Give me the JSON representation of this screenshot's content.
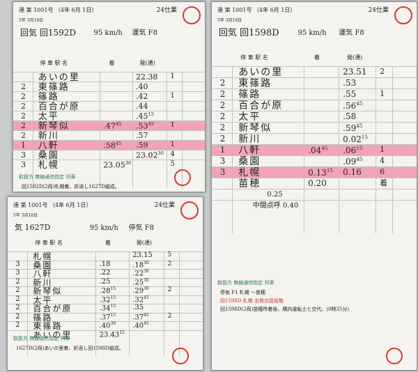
{
  "cards": [
    {
      "header": "達 第 1001号 （4年 6月 1日）",
      "duty": "24仕業",
      "date": "5年 3月18日",
      "train": "回気 回1592D",
      "speed": "95 km/h",
      "kind": "運気 F8",
      "cols": [
        "停 車 駅 名",
        "着",
        "発(通)"
      ],
      "rows": [
        {
          "station": "あいの里",
          "dep": "22.38",
          "track": "1"
        },
        {
          "interval": "2",
          "station": "東篠路",
          "dep": ".40"
        },
        {
          "interval": "2",
          "station": "篠路",
          "dep": ".42",
          "track": "1"
        },
        {
          "interval": "2",
          "station": "百合が原",
          "dep": ".44"
        },
        {
          "interval": "2",
          "station": "太平",
          "dep": ".45",
          "dep_sec": "15"
        },
        {
          "interval": "2",
          "station": "新琴似",
          "arr": ".47",
          "arr_sec": "45",
          "dep": ".53",
          "dep_sec": "45",
          "track": "1",
          "highlight": true
        },
        {
          "interval": "2",
          "station": "新川",
          "dep": ".57"
        },
        {
          "interval": "1",
          "station": "八軒",
          "arr": ".58",
          "arr_sec": "45",
          "dep": ".59",
          "track": "1",
          "highlight": true
        },
        {
          "interval": "3",
          "station": "桑園",
          "dep": "23.02",
          "dep_sec": "30",
          "track": "4"
        },
        {
          "interval": "3",
          "station": "札幌",
          "arr": "23.05",
          "arr_sec": "30",
          "track": "5"
        }
      ],
      "handling": "取扱方 無線通信指定 列車",
      "notes": [
        "回1592D(2両)札幌着、折返し1627D組成。"
      ]
    },
    {
      "header": "達 第 1001号 （4年 6月 1日）",
      "duty": "24仕業",
      "date": "5年 3月18日",
      "train": "回気 回1598D",
      "speed": "95 km/h",
      "kind": "運気 F8",
      "cols": [
        "停 車 駅 名",
        "着",
        "発(通)"
      ],
      "rows": [
        {
          "station": "あいの里",
          "dep": "23.51",
          "track": "2"
        },
        {
          "interval": "2",
          "station": "東篠路",
          "dep": ".53"
        },
        {
          "interval": "2",
          "station": "篠路",
          "dep": ".55",
          "track": "1"
        },
        {
          "interval": "2",
          "station": "百合が原",
          "dep": ".56",
          "dep_sec": "45"
        },
        {
          "interval": "2",
          "station": "太平",
          "dep": ".58"
        },
        {
          "interval": "2",
          "station": "新琴似",
          "dep": ".59",
          "dep_sec": "45"
        },
        {
          "interval": "2",
          "station": "新川",
          "dep": "0.02",
          "dep_sec": "15"
        },
        {
          "interval": "1",
          "station": "八軒",
          "arr": ".04",
          "arr_sec": "45",
          "dep": ".06",
          "dep_sec": "15",
          "track": "1",
          "highlight": true
        },
        {
          "interval": "3",
          "station": "桑園",
          "dep": ".09",
          "dep_sec": "45",
          "track": "4"
        },
        {
          "interval": "3",
          "station": "札幌",
          "arr": "0.13",
          "arr_sec": "15",
          "dep": "0.16",
          "track": "6",
          "highlight": true
        },
        {
          "station": "苗穂",
          "arr": "0.20",
          "track": "着"
        }
      ],
      "extra": [
        "0.25",
        "中間点呼 0.40"
      ],
      "handling": "取扱方 無線通信指定 列車",
      "notes": [
        "停気 F1 札幌 ～苗穂",
        "回1598D 札幌 出発合図省略",
        "回1598D(2両)苗穂所着後、構内運転士と交代。(0時35分)"
      ]
    },
    {
      "header": "達 第 1001号 （4年 6月 1日）",
      "duty": "24仕業",
      "date": "5年 3月18日",
      "train": "気 1627D",
      "speed": "95 km/h",
      "kind": "停気 F8",
      "cols": [
        "停 車 駅 名",
        "着",
        "発(通)"
      ],
      "rows": [
        {
          "station": "札幌",
          "dep": "23.15",
          "track": "5"
        },
        {
          "interval": "3",
          "station": "桑園",
          "arr": ".18",
          "dep": ".18",
          "dep_sec": "30",
          "track": "2"
        },
        {
          "interval": "3",
          "station": "八軒",
          "arr": ".22",
          "dep": ".22",
          "dep_sec": "30"
        },
        {
          "interval": "2",
          "station": "新川",
          "arr": ".25",
          "dep": ".25",
          "dep_sec": "30"
        },
        {
          "interval": "2",
          "station": "新琴似",
          "arr": ".28",
          "arr_sec": "15",
          "dep": ".29",
          "dep_sec": "30",
          "track": "2"
        },
        {
          "interval": "2",
          "station": "太平",
          "arr": ".32",
          "arr_sec": "15",
          "dep": ".32",
          "dep_sec": "45"
        },
        {
          "interval": "2",
          "station": "百合が原",
          "arr": ".34",
          "arr_sec": "15",
          "dep": ".35"
        },
        {
          "interval": "2",
          "station": "篠路",
          "arr": ".37",
          "arr_sec": "15",
          "dep": ".37",
          "dep_sec": "45",
          "track": "2"
        },
        {
          "interval": "2",
          "station": "東篠路",
          "arr": ".40",
          "arr_sec": "30",
          "dep": ".40",
          "dep_sec": "45"
        },
        {
          "station": "あいの里",
          "arr": "23.43",
          "arr_sec": "15"
        }
      ],
      "handling": "取扱方 無線通信指定 列車",
      "notes": [
        "1627D(2両)あいの里着、折返し回1598D組成。"
      ]
    }
  ]
}
